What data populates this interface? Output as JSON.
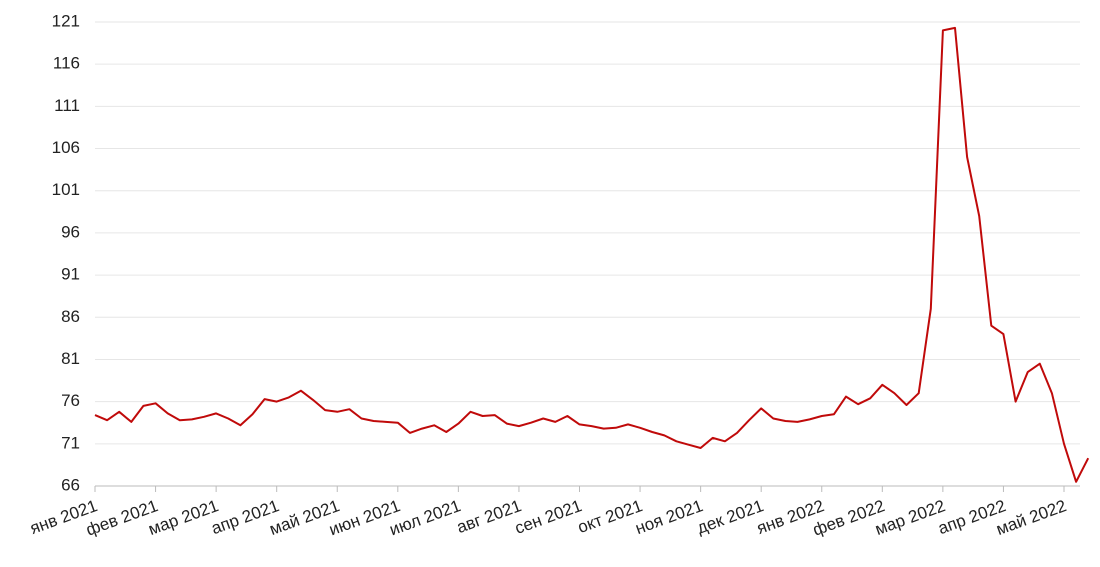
{
  "chart_data": {
    "type": "line",
    "categories": [
      "янв 2021",
      null,
      null,
      null,
      null,
      "фев 2021",
      null,
      null,
      null,
      null,
      "мар 2021",
      null,
      null,
      null,
      null,
      "апр 2021",
      null,
      null,
      null,
      null,
      "май 2021",
      null,
      null,
      null,
      null,
      "июн 2021",
      null,
      null,
      null,
      null,
      "июл 2021",
      null,
      null,
      null,
      null,
      "авг 2021",
      null,
      null,
      null,
      null,
      "сен 2021",
      null,
      null,
      null,
      null,
      "окт 2021",
      null,
      null,
      null,
      null,
      "ноя 2021",
      null,
      null,
      null,
      null,
      "дек 2021",
      null,
      null,
      null,
      null,
      "янв 2022",
      null,
      null,
      null,
      null,
      "фев 2022",
      null,
      null,
      null,
      null,
      "мар 2022",
      null,
      null,
      null,
      null,
      "апр 2022",
      null,
      null,
      null,
      null,
      "май 2022",
      null,
      null
    ],
    "series": [
      {
        "color": "#c00a0a",
        "values": [
          74.4,
          73.8,
          74.8,
          73.6,
          75.5,
          75.8,
          74.6,
          73.8,
          73.9,
          74.2,
          74.6,
          74.0,
          73.2,
          74.5,
          76.3,
          76.0,
          76.5,
          77.3,
          76.2,
          75.0,
          74.8,
          75.1,
          74.0,
          73.7,
          73.6,
          73.5,
          72.3,
          72.8,
          73.2,
          72.4,
          73.4,
          74.8,
          74.3,
          74.4,
          73.4,
          73.1,
          73.5,
          74.0,
          73.6,
          74.3,
          73.3,
          73.1,
          72.8,
          72.9,
          73.3,
          72.9,
          72.4,
          72.0,
          71.3,
          70.9,
          70.5,
          71.7,
          71.3,
          72.3,
          73.8,
          75.2,
          74.0,
          73.7,
          73.6,
          73.9,
          74.3,
          74.5,
          76.6,
          75.7,
          76.4,
          78.0,
          77.0,
          75.6,
          77.0,
          87.0,
          120.0,
          120.3,
          105.0,
          98.0,
          85.0,
          84.0,
          76.0,
          79.5,
          80.5,
          77.0,
          71.0,
          66.5,
          69.3
        ]
      }
    ],
    "ylim": [
      66,
      121
    ],
    "yticks": [
      66,
      71,
      76,
      81,
      86,
      91,
      96,
      101,
      106,
      111,
      116,
      121
    ],
    "grid": true
  }
}
